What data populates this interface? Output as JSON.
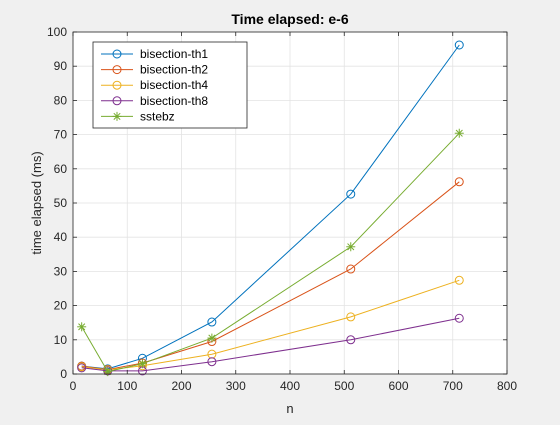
{
  "chart_data": {
    "type": "line",
    "title": "Time elapsed: e-6",
    "xlabel": "n",
    "ylabel": "time elapsed (ms)",
    "xlim": [
      0,
      800
    ],
    "ylim": [
      0,
      100
    ],
    "xticks": [
      0,
      100,
      200,
      300,
      400,
      500,
      600,
      700,
      800
    ],
    "yticks": [
      0,
      10,
      20,
      30,
      40,
      50,
      60,
      70,
      80,
      90,
      100
    ],
    "grid": true,
    "legend_position": "top-left",
    "x": [
      16,
      64,
      128,
      256,
      512,
      712
    ],
    "series": [
      {
        "name": "bisection-th1",
        "color": "#0072bd",
        "marker": "circle",
        "values": [
          2.3,
          1.5,
          4.6,
          15.2,
          52.6,
          96.2
        ]
      },
      {
        "name": "bisection-th2",
        "color": "#d95319",
        "marker": "circle",
        "values": [
          2.3,
          1.3,
          3.2,
          9.5,
          30.7,
          56.2
        ]
      },
      {
        "name": "bisection-th4",
        "color": "#edb120",
        "marker": "circle",
        "values": [
          2.1,
          1.2,
          2.4,
          5.8,
          16.7,
          27.4
        ]
      },
      {
        "name": "bisection-th8",
        "color": "#7e2f8e",
        "marker": "circle",
        "values": [
          1.8,
          0.9,
          0.9,
          3.6,
          10.0,
          16.3
        ]
      },
      {
        "name": "sstebz",
        "color": "#77ac30",
        "marker": "asterisk",
        "values": [
          13.8,
          0.7,
          3.0,
          10.5,
          37.2,
          70.4
        ]
      }
    ]
  }
}
